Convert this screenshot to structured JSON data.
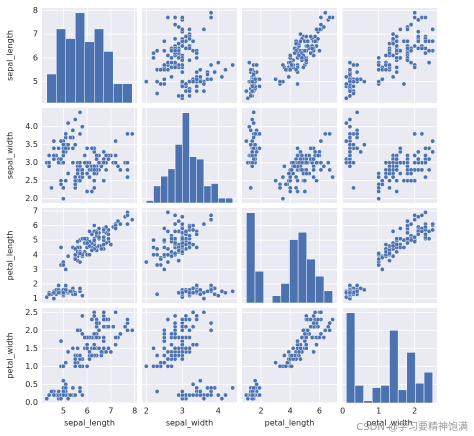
{
  "chart_data": {
    "type": "pairplot",
    "color": "#4c72b0",
    "background": "#eaeaf2",
    "grid": true,
    "variables": [
      {
        "name": "sepal_length",
        "lim": [
          4.1,
          8.1
        ],
        "xticks": [
          5,
          6,
          7,
          8
        ],
        "yticks": [
          5,
          6,
          7,
          8
        ],
        "bins": [
          4.3,
          4.7,
          5.1,
          5.5,
          5.9,
          6.3,
          6.7,
          7.1,
          7.5,
          7.9
        ],
        "counts": [
          9,
          23,
          20,
          28,
          19,
          23,
          16,
          6,
          6
        ]
      },
      {
        "name": "sepal_width",
        "lim": [
          1.88,
          4.52
        ],
        "xticks": [
          2,
          3,
          4
        ],
        "yticks": [
          {
            "value": 2,
            "label": "2.0"
          },
          {
            "value": 2.5,
            "label": "2.5"
          },
          {
            "value": 3,
            "label": "3.0"
          },
          {
            "value": 3.5,
            "label": "3.5"
          },
          {
            "value": 4,
            "label": "4.0"
          }
        ],
        "bins": [
          2.0,
          2.2,
          2.4,
          2.6,
          2.8,
          3.0,
          3.2,
          3.4,
          3.6,
          3.8,
          4.0,
          4.2,
          4.4
        ],
        "counts": [
          1,
          7,
          11,
          14,
          24,
          37,
          19,
          18,
          7,
          8,
          2,
          2
        ]
      },
      {
        "name": "petal_length",
        "lim": [
          0.7,
          7.2
        ],
        "xticks": [
          2,
          4,
          6
        ],
        "yticks": [
          1,
          2,
          3,
          4,
          5,
          6,
          7
        ],
        "bins": [
          1.0,
          1.59,
          2.18,
          2.77,
          3.36,
          3.95,
          4.54,
          5.13,
          5.72,
          6.31,
          6.9
        ],
        "counts": [
          37,
          13,
          0,
          3,
          8,
          26,
          29,
          18,
          11,
          5
        ]
      },
      {
        "name": "petal_width",
        "lim": [
          -0.02,
          2.62
        ],
        "xticks": [
          0,
          1,
          2
        ],
        "yticks": [
          {
            "value": 0,
            "label": "0.0"
          },
          {
            "value": 0.5,
            "label": "0.5"
          },
          {
            "value": 1,
            "label": "1.0"
          },
          {
            "value": 1.5,
            "label": "1.5"
          },
          {
            "value": 2,
            "label": "2.0"
          },
          {
            "value": 2.5,
            "label": "2.5"
          }
        ],
        "bins": [
          0.1,
          0.34,
          0.58,
          0.82,
          1.06,
          1.3,
          1.54,
          1.78,
          2.02,
          2.26,
          2.5
        ],
        "counts": [
          41,
          8,
          1,
          7,
          8,
          33,
          6,
          23,
          9,
          14
        ]
      }
    ],
    "rows": [
      [
        5.1,
        3.5,
        1.4,
        0.2
      ],
      [
        4.9,
        3.0,
        1.4,
        0.2
      ],
      [
        4.7,
        3.2,
        1.3,
        0.2
      ],
      [
        4.6,
        3.1,
        1.5,
        0.2
      ],
      [
        5.0,
        3.6,
        1.4,
        0.2
      ],
      [
        5.4,
        3.9,
        1.7,
        0.4
      ],
      [
        4.6,
        3.4,
        1.4,
        0.3
      ],
      [
        5.0,
        3.4,
        1.5,
        0.2
      ],
      [
        4.4,
        2.9,
        1.4,
        0.2
      ],
      [
        4.9,
        3.1,
        1.5,
        0.1
      ],
      [
        5.4,
        3.7,
        1.5,
        0.2
      ],
      [
        4.8,
        3.4,
        1.6,
        0.2
      ],
      [
        4.8,
        3.0,
        1.4,
        0.1
      ],
      [
        4.3,
        3.0,
        1.1,
        0.1
      ],
      [
        5.8,
        4.0,
        1.2,
        0.2
      ],
      [
        5.7,
        4.4,
        1.5,
        0.4
      ],
      [
        5.4,
        3.9,
        1.3,
        0.4
      ],
      [
        5.1,
        3.5,
        1.4,
        0.3
      ],
      [
        5.7,
        3.8,
        1.7,
        0.3
      ],
      [
        5.1,
        3.8,
        1.5,
        0.3
      ],
      [
        5.4,
        3.4,
        1.7,
        0.2
      ],
      [
        5.1,
        3.7,
        1.5,
        0.4
      ],
      [
        4.6,
        3.6,
        1.0,
        0.2
      ],
      [
        5.1,
        3.3,
        1.7,
        0.5
      ],
      [
        4.8,
        3.4,
        1.9,
        0.2
      ],
      [
        5.0,
        3.0,
        1.6,
        0.2
      ],
      [
        5.0,
        3.4,
        1.6,
        0.4
      ],
      [
        5.2,
        3.5,
        1.5,
        0.2
      ],
      [
        5.2,
        3.4,
        1.4,
        0.2
      ],
      [
        4.7,
        3.2,
        1.6,
        0.2
      ],
      [
        4.8,
        3.1,
        1.6,
        0.2
      ],
      [
        5.4,
        3.4,
        1.5,
        0.4
      ],
      [
        5.2,
        4.1,
        1.5,
        0.1
      ],
      [
        5.5,
        4.2,
        1.4,
        0.2
      ],
      [
        4.9,
        3.1,
        1.5,
        0.2
      ],
      [
        5.0,
        3.2,
        1.2,
        0.2
      ],
      [
        5.5,
        3.5,
        1.3,
        0.2
      ],
      [
        4.9,
        3.6,
        1.4,
        0.1
      ],
      [
        4.4,
        3.0,
        1.3,
        0.2
      ],
      [
        5.1,
        3.4,
        1.5,
        0.2
      ],
      [
        5.0,
        3.5,
        1.3,
        0.3
      ],
      [
        4.5,
        2.3,
        1.3,
        0.3
      ],
      [
        4.4,
        3.2,
        1.3,
        0.2
      ],
      [
        5.0,
        3.5,
        1.6,
        0.6
      ],
      [
        5.1,
        3.8,
        1.9,
        0.4
      ],
      [
        4.8,
        3.0,
        1.4,
        0.3
      ],
      [
        5.1,
        3.8,
        1.6,
        0.2
      ],
      [
        4.6,
        3.2,
        1.4,
        0.2
      ],
      [
        5.3,
        3.7,
        1.5,
        0.2
      ],
      [
        5.0,
        3.3,
        1.4,
        0.2
      ],
      [
        7.0,
        3.2,
        4.7,
        1.4
      ],
      [
        6.4,
        3.2,
        4.5,
        1.5
      ],
      [
        6.9,
        3.1,
        4.9,
        1.5
      ],
      [
        5.5,
        2.3,
        4.0,
        1.3
      ],
      [
        6.5,
        2.8,
        4.6,
        1.5
      ],
      [
        5.7,
        2.8,
        4.5,
        1.3
      ],
      [
        6.3,
        3.3,
        4.7,
        1.6
      ],
      [
        4.9,
        2.4,
        3.3,
        1.0
      ],
      [
        6.6,
        2.9,
        4.6,
        1.3
      ],
      [
        5.2,
        2.7,
        3.9,
        1.4
      ],
      [
        5.0,
        2.0,
        3.5,
        1.0
      ],
      [
        5.9,
        3.0,
        4.2,
        1.5
      ],
      [
        6.0,
        2.2,
        4.0,
        1.0
      ],
      [
        6.1,
        2.9,
        4.7,
        1.4
      ],
      [
        5.6,
        2.9,
        3.6,
        1.3
      ],
      [
        6.7,
        3.1,
        4.4,
        1.4
      ],
      [
        5.6,
        3.0,
        4.5,
        1.5
      ],
      [
        5.8,
        2.7,
        4.1,
        1.0
      ],
      [
        6.2,
        2.2,
        4.5,
        1.5
      ],
      [
        5.6,
        2.5,
        3.9,
        1.1
      ],
      [
        5.9,
        3.2,
        4.8,
        1.8
      ],
      [
        6.1,
        2.8,
        4.0,
        1.3
      ],
      [
        6.3,
        2.5,
        4.9,
        1.5
      ],
      [
        6.1,
        2.8,
        4.7,
        1.2
      ],
      [
        6.4,
        2.9,
        4.3,
        1.3
      ],
      [
        6.6,
        3.0,
        4.4,
        1.4
      ],
      [
        6.8,
        2.8,
        4.8,
        1.4
      ],
      [
        6.7,
        3.0,
        5.0,
        1.7
      ],
      [
        6.0,
        2.9,
        4.5,
        1.5
      ],
      [
        5.7,
        2.6,
        3.5,
        1.0
      ],
      [
        5.5,
        2.4,
        3.8,
        1.1
      ],
      [
        5.5,
        2.4,
        3.7,
        1.0
      ],
      [
        5.8,
        2.7,
        3.9,
        1.2
      ],
      [
        6.0,
        2.7,
        5.1,
        1.6
      ],
      [
        5.4,
        3.0,
        4.5,
        1.5
      ],
      [
        6.0,
        3.4,
        4.5,
        1.6
      ],
      [
        6.7,
        3.1,
        4.7,
        1.5
      ],
      [
        6.3,
        2.3,
        4.4,
        1.3
      ],
      [
        5.6,
        3.0,
        4.1,
        1.3
      ],
      [
        5.5,
        2.5,
        4.0,
        1.3
      ],
      [
        5.5,
        2.6,
        4.4,
        1.2
      ],
      [
        6.1,
        3.0,
        4.6,
        1.4
      ],
      [
        5.8,
        2.6,
        4.0,
        1.2
      ],
      [
        5.0,
        2.3,
        3.3,
        1.0
      ],
      [
        5.6,
        2.7,
        4.2,
        1.3
      ],
      [
        5.7,
        3.0,
        4.2,
        1.2
      ],
      [
        5.7,
        2.9,
        4.2,
        1.3
      ],
      [
        6.2,
        2.9,
        4.3,
        1.3
      ],
      [
        5.1,
        2.5,
        3.0,
        1.1
      ],
      [
        5.7,
        2.8,
        4.1,
        1.3
      ],
      [
        6.3,
        3.3,
        6.0,
        2.5
      ],
      [
        5.8,
        2.7,
        5.1,
        1.9
      ],
      [
        7.1,
        3.0,
        5.9,
        2.1
      ],
      [
        6.3,
        2.9,
        5.6,
        1.8
      ],
      [
        6.5,
        3.0,
        5.8,
        2.2
      ],
      [
        7.6,
        3.0,
        6.6,
        2.1
      ],
      [
        4.9,
        2.5,
        4.5,
        1.7
      ],
      [
        7.3,
        2.9,
        6.3,
        1.8
      ],
      [
        6.7,
        2.5,
        5.8,
        1.8
      ],
      [
        7.2,
        3.6,
        6.1,
        2.5
      ],
      [
        6.5,
        3.2,
        5.1,
        2.0
      ],
      [
        6.4,
        2.7,
        5.3,
        1.9
      ],
      [
        6.8,
        3.0,
        5.5,
        2.1
      ],
      [
        5.7,
        2.5,
        5.0,
        2.0
      ],
      [
        5.8,
        2.8,
        5.1,
        2.4
      ],
      [
        6.4,
        3.2,
        5.3,
        2.3
      ],
      [
        6.5,
        3.0,
        5.5,
        1.8
      ],
      [
        7.7,
        3.8,
        6.7,
        2.2
      ],
      [
        7.7,
        2.6,
        6.9,
        2.3
      ],
      [
        6.0,
        2.2,
        5.0,
        1.5
      ],
      [
        6.9,
        3.2,
        5.7,
        2.3
      ],
      [
        5.6,
        2.8,
        4.9,
        2.0
      ],
      [
        7.7,
        2.8,
        6.7,
        2.0
      ],
      [
        6.3,
        2.7,
        4.9,
        1.8
      ],
      [
        6.7,
        3.3,
        5.7,
        2.1
      ],
      [
        7.2,
        3.2,
        6.0,
        1.8
      ],
      [
        6.2,
        2.8,
        4.8,
        1.8
      ],
      [
        6.1,
        3.0,
        4.9,
        1.8
      ],
      [
        6.4,
        2.8,
        5.6,
        2.1
      ],
      [
        7.2,
        3.0,
        5.8,
        1.6
      ],
      [
        7.4,
        2.8,
        6.1,
        1.9
      ],
      [
        7.9,
        3.8,
        6.4,
        2.0
      ],
      [
        6.4,
        2.8,
        5.6,
        2.2
      ],
      [
        6.3,
        2.8,
        5.1,
        1.5
      ],
      [
        6.1,
        2.6,
        5.6,
        1.4
      ],
      [
        7.7,
        3.0,
        6.1,
        2.3
      ],
      [
        6.3,
        3.4,
        5.6,
        2.4
      ],
      [
        6.4,
        3.1,
        5.5,
        1.8
      ],
      [
        6.0,
        3.0,
        4.8,
        1.8
      ],
      [
        6.9,
        3.1,
        5.4,
        2.1
      ],
      [
        6.7,
        3.1,
        5.6,
        2.4
      ],
      [
        6.9,
        3.1,
        5.1,
        2.3
      ],
      [
        5.8,
        2.7,
        5.1,
        1.9
      ],
      [
        6.8,
        3.2,
        5.9,
        2.3
      ],
      [
        6.7,
        3.3,
        5.7,
        2.5
      ],
      [
        6.7,
        3.0,
        5.2,
        2.3
      ],
      [
        6.3,
        2.5,
        5.0,
        1.9
      ],
      [
        6.5,
        3.0,
        5.2,
        2.0
      ],
      [
        6.2,
        3.4,
        5.4,
        2.3
      ],
      [
        5.9,
        3.0,
        5.1,
        1.8
      ]
    ]
  },
  "watermark": "CSDN @学习要精神饱满"
}
